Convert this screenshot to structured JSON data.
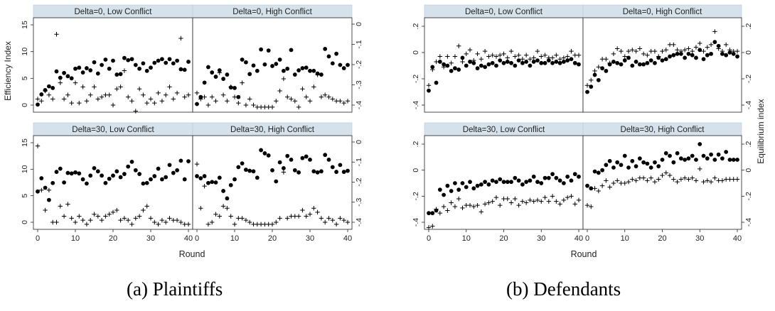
{
  "captions": {
    "left": "(a) Plaintiffs",
    "right": "(b) Defendants"
  },
  "colors": {
    "strip_bg": "#d6e2eb",
    "frame": "#222222",
    "marker": "#000000"
  },
  "figures": [
    {
      "caption": "(a) Plaintiffs",
      "ylabel_left": "Efficiency Index",
      "ylabel_right": "",
      "xlabel": "Round",
      "x_ticks": [
        0,
        10,
        20,
        30,
        40
      ],
      "y_left_ticks": [
        "0",
        "5",
        "10",
        "15"
      ],
      "y_right_ticks": [
        "0",
        "-.1",
        "-.2",
        "-.3",
        "-.4"
      ]
    },
    {
      "caption": "(b) Defendants",
      "ylabel_left": "",
      "ylabel_right": "Equilibrium index",
      "xlabel": "Round",
      "x_ticks": [
        0,
        10,
        20,
        30,
        40
      ],
      "y_left_ticks": [
        ".2",
        "0",
        "-.2",
        "-.4"
      ],
      "y_right_ticks": [
        ".2",
        "0",
        "-.2",
        "-.4"
      ]
    }
  ],
  "chart_data": [
    {
      "type": "scatter",
      "figure": "Plaintiffs",
      "ylabel": "Efficiency Index",
      "xlabel": "Round",
      "xlim": [
        0,
        40
      ],
      "ylim": [
        0,
        15
      ],
      "y2lim": [
        -0.4,
        0
      ],
      "series_markers": {
        "y": "dot",
        "y2": "plus"
      },
      "panels": [
        {
          "title": "Delta=0, Low Conflict",
          "dots": [
            0.1,
            2,
            2.8,
            3.5,
            3.2,
            6.3,
            5.1,
            6,
            5.4,
            5,
            6.8,
            7,
            6.1,
            6.9,
            6.5,
            8,
            5.9,
            7.5,
            8.5,
            6.8,
            8.3,
            5.7,
            5.8,
            8.8,
            8.4,
            8.6,
            7.5,
            6.8,
            7.8,
            6.4,
            7,
            7.9,
            8.3,
            8.6,
            7.9,
            8.6,
            7.8,
            8.3,
            6.7,
            6.6,
            8.1
          ],
          "plus": [
            -0.37,
            -0.38,
            -0.33,
            -0.35,
            -0.37,
            0.05,
            -0.29,
            -0.37,
            -0.35,
            -0.39,
            -0.29,
            -0.39,
            -0.31,
            -0.38,
            -0.35,
            -0.31,
            -0.37,
            -0.36,
            -0.35,
            -0.35,
            -0.4,
            -0.32,
            -0.31,
            -0.23,
            -0.36,
            -0.38,
            -0.43,
            -0.32,
            -0.35,
            -0.39,
            -0.37,
            -0.39,
            -0.34,
            -0.38,
            -0.35,
            -0.31,
            -0.37,
            -0.34,
            -0.07,
            -0.36,
            -0.35
          ]
        },
        {
          "title": "Delta=0, High Conflict",
          "dots": [
            0.2,
            1.5,
            4.2,
            7.1,
            6.1,
            5.3,
            6.5,
            4.9,
            5.7,
            3.3,
            3.2,
            1.5,
            8.5,
            8,
            5.8,
            7.4,
            6.4,
            10.4,
            7.6,
            10.2,
            7.3,
            7.7,
            8.5,
            6.4,
            6.8,
            10.3,
            5.7,
            6.5,
            6.9,
            7,
            6.4,
            6.4,
            5.9,
            5.7,
            10.5,
            9.1,
            7.8,
            9.6,
            7.5,
            6.9,
            7.5
          ],
          "plus": [
            -0.34,
            -0.37,
            -0.36,
            -0.4,
            -0.36,
            -0.38,
            -0.24,
            -0.35,
            -0.38,
            -0.31,
            -0.36,
            -0.39,
            -0.29,
            -0.4,
            -0.37,
            -0.4,
            -0.41,
            -0.41,
            -0.41,
            -0.41,
            -0.41,
            -0.38,
            -0.33,
            -0.27,
            -0.36,
            -0.37,
            -0.38,
            -0.41,
            -0.32,
            -0.36,
            -0.38,
            -0.31,
            -0.25,
            -0.36,
            -0.35,
            -0.36,
            -0.37,
            -0.38,
            -0.38,
            -0.39,
            -0.38
          ]
        },
        {
          "title": "Delta=30, Low Conflict",
          "dots": [
            5.8,
            8.3,
            6.5,
            4.2,
            7.4,
            9.5,
            10.1,
            7.5,
            9.3,
            9.2,
            9.4,
            9.2,
            8.1,
            7.3,
            8.8,
            10.2,
            9.6,
            8.8,
            7.4,
            8.2,
            8.8,
            9.6,
            8.5,
            9.1,
            10.5,
            11.4,
            9.8,
            9.1,
            7.3,
            7.4,
            8.1,
            8.7,
            10.1,
            8.1,
            8.5,
            10.8,
            9.3,
            9.8,
            11.6,
            8.1,
            11.5
          ],
          "plus": [
            -0.02,
            -0.24,
            -0.34,
            -0.24,
            -0.4,
            -0.4,
            -0.32,
            -0.37,
            -0.31,
            -0.38,
            -0.4,
            -0.37,
            -0.39,
            -0.41,
            -0.39,
            -0.36,
            -0.37,
            -0.39,
            -0.37,
            -0.36,
            -0.35,
            -0.34,
            -0.39,
            -0.38,
            -0.39,
            -0.41,
            -0.38,
            -0.37,
            -0.34,
            -0.32,
            -0.38,
            -0.4,
            -0.41,
            -0.39,
            -0.4,
            -0.38,
            -0.39,
            -0.39,
            -0.4,
            -0.41,
            -0.41
          ]
        },
        {
          "title": "Delta=30, High Conflict",
          "dots": [
            8.7,
            8.3,
            8.7,
            7.4,
            7.6,
            7.5,
            8.4,
            5.9,
            4.5,
            7,
            8.1,
            10.4,
            11.1,
            9.9,
            9.7,
            9.6,
            8.4,
            13.6,
            13,
            12.6,
            9.8,
            7.7,
            11.3,
            10.2,
            12.5,
            11.8,
            9.8,
            9.4,
            12.1,
            12.4,
            11.8,
            9.6,
            9.4,
            9.6,
            12.7,
            11.8,
            10.4,
            9.5,
            10.8,
            9.5,
            9.7
          ],
          "plus": [
            -0.11,
            -0.33,
            -0.22,
            -0.41,
            -0.4,
            -0.36,
            -0.37,
            -0.32,
            -0.33,
            -0.37,
            -0.41,
            -0.38,
            -0.38,
            -0.39,
            -0.4,
            -0.41,
            -0.41,
            -0.41,
            -0.41,
            -0.41,
            -0.41,
            -0.4,
            -0.38,
            -0.15,
            -0.38,
            -0.37,
            -0.37,
            -0.37,
            -0.34,
            -0.37,
            -0.36,
            -0.33,
            -0.35,
            -0.38,
            -0.4,
            -0.38,
            -0.39,
            -0.41,
            -0.38,
            -0.39,
            -0.4
          ]
        }
      ]
    },
    {
      "type": "scatter",
      "figure": "Defendants",
      "ylabel": "Equilibrium index",
      "xlabel": "Round",
      "xlim": [
        0,
        40
      ],
      "ylim": [
        -0.45,
        0.25
      ],
      "series_markers": {
        "y_a": "dot",
        "y_b": "plus"
      },
      "panels": [
        {
          "title": "Delta=0, Low Conflict",
          "dots": [
            -0.29,
            -0.11,
            -0.23,
            -0.07,
            -0.09,
            -0.1,
            -0.14,
            -0.12,
            -0.13,
            -0.04,
            -0.1,
            -0.07,
            -0.08,
            -0.12,
            -0.1,
            -0.11,
            -0.09,
            -0.08,
            -0.1,
            -0.06,
            -0.08,
            -0.07,
            -0.08,
            -0.1,
            -0.06,
            -0.08,
            -0.07,
            -0.1,
            -0.07,
            -0.06,
            -0.08,
            -0.08,
            -0.06,
            -0.08,
            -0.07,
            -0.08,
            -0.07,
            -0.06,
            -0.05,
            -0.08,
            -0.09
          ],
          "plus": [
            -0.25,
            -0.13,
            -0.07,
            -0.03,
            -0.11,
            -0.03,
            -0.08,
            -0.03,
            0.05,
            -0.07,
            -0.01,
            0.02,
            -0.06,
            -0.01,
            -0.05,
            0.01,
            -0.03,
            -0.02,
            -0.03,
            -0.02,
            -0.01,
            -0.04,
            0.01,
            -0.03,
            -0.02,
            -0.05,
            -0.02,
            -0.05,
            -0.04,
            0.01,
            -0.03,
            -0.02,
            -0.04,
            -0.04,
            -0.02,
            -0.05,
            -0.04,
            -0.03,
            0.01,
            -0.02,
            -0.02
          ]
        },
        {
          "title": "Delta=0, High Conflict",
          "dots": [
            -0.3,
            -0.26,
            -0.17,
            -0.21,
            -0.12,
            -0.14,
            -0.09,
            -0.07,
            -0.08,
            -0.09,
            -0.06,
            -0.04,
            -0.1,
            -0.07,
            -0.09,
            -0.09,
            -0.08,
            -0.06,
            -0.08,
            -0.04,
            -0.06,
            -0.05,
            -0.03,
            -0.02,
            -0.01,
            -0.01,
            -0.04,
            -0.01,
            -0.02,
            -0.04,
            0.02,
            -0.05,
            -0.02,
            -0.01,
            0.08,
            0.05,
            -0.01,
            -0.02,
            0,
            -0.01,
            -0.03
          ],
          "plus": [
            -0.25,
            -0.21,
            -0.14,
            -0.11,
            -0.05,
            -0.05,
            -0.08,
            -0.01,
            0.03,
            0.01,
            -0.03,
            0.01,
            0.02,
            0.01,
            0.03,
            -0.01,
            -0.02,
            0.01,
            0.01,
            -0.03,
            0.01,
            0.02,
            0.06,
            0.06,
            0.02,
            0.01,
            0.02,
            0.03,
            0.01,
            0.04,
            0.07,
            0.01,
            0.04,
            0.06,
            0.16,
            0.03,
            0.01,
            0.06,
            0.02,
            0.01,
            0.01
          ]
        },
        {
          "title": "Delta=30, Low Conflict",
          "dots": [
            -0.33,
            -0.33,
            -0.31,
            -0.15,
            -0.19,
            -0.12,
            -0.16,
            -0.1,
            -0.15,
            -0.1,
            -0.13,
            -0.09,
            -0.14,
            -0.12,
            -0.11,
            -0.09,
            -0.11,
            -0.08,
            -0.09,
            -0.07,
            -0.09,
            -0.09,
            -0.09,
            -0.06,
            -0.08,
            -0.11,
            -0.09,
            -0.08,
            -0.05,
            -0.09,
            -0.1,
            -0.06,
            -0.06,
            -0.03,
            -0.06,
            -0.08,
            -0.1,
            -0.05,
            -0.08,
            -0.03,
            -0.05
          ],
          "plus": [
            -0.44,
            -0.43,
            -0.3,
            -0.33,
            -0.28,
            -0.31,
            -0.25,
            -0.28,
            -0.22,
            -0.29,
            -0.27,
            -0.27,
            -0.28,
            -0.27,
            -0.32,
            -0.26,
            -0.25,
            -0.24,
            -0.21,
            -0.27,
            -0.22,
            -0.22,
            -0.25,
            -0.22,
            -0.27,
            -0.24,
            -0.25,
            -0.23,
            -0.24,
            -0.23,
            -0.24,
            -0.21,
            -0.24,
            -0.2,
            -0.24,
            -0.26,
            -0.23,
            -0.21,
            -0.2,
            -0.26,
            -0.23
          ]
        },
        {
          "title": "Delta=30, High Conflict",
          "dots": [
            -0.12,
            -0.14,
            -0.01,
            -0.02,
            0,
            0.04,
            0.07,
            0.02,
            0.06,
            0.04,
            0.11,
            0.02,
            0.07,
            0.03,
            0.09,
            0.06,
            0.05,
            0.02,
            0.06,
            0.03,
            0.08,
            0.13,
            0.11,
            0.06,
            0.13,
            0.09,
            0.08,
            0.09,
            0.11,
            0.08,
            0.2,
            0.11,
            0.09,
            0.12,
            0.08,
            0.12,
            0.09,
            0.14,
            0.08,
            0.08,
            0.08
          ],
          "plus": [
            -0.27,
            -0.28,
            -0.14,
            -0.16,
            -0.12,
            -0.08,
            -0.13,
            -0.1,
            -0.08,
            -0.1,
            -0.1,
            -0.09,
            -0.07,
            -0.08,
            -0.06,
            -0.06,
            -0.08,
            -0.06,
            -0.09,
            -0.07,
            -0.04,
            -0.02,
            -0.04,
            -0.07,
            -0.09,
            -0.07,
            -0.06,
            -0.07,
            -0.06,
            -0.08,
            0.01,
            -0.09,
            -0.08,
            -0.09,
            -0.06,
            -0.08,
            -0.08,
            -0.07,
            -0.07,
            -0.07,
            -0.07
          ]
        }
      ]
    }
  ]
}
